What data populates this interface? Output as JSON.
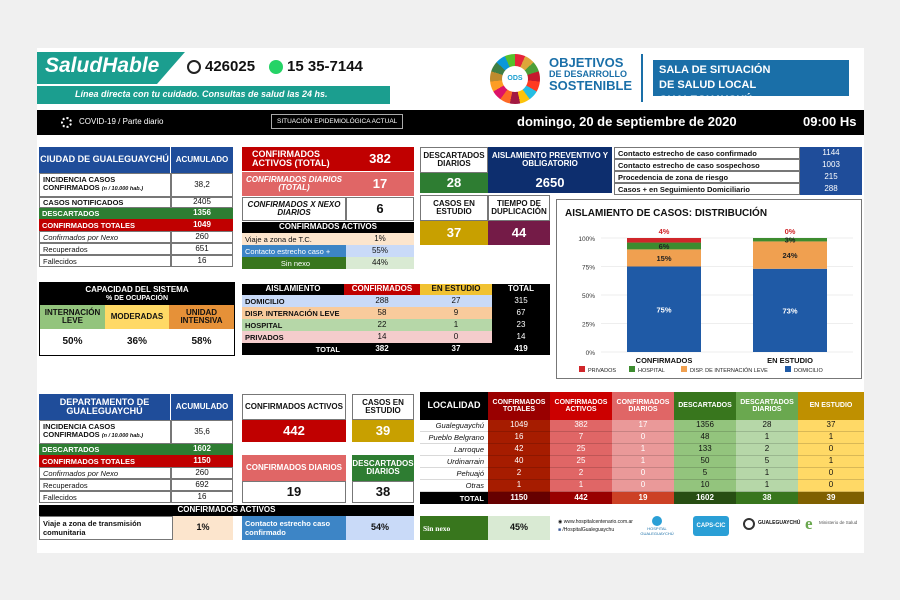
{
  "header": {
    "brand": "SaludHable",
    "phone1": "426025",
    "phone2": "15 35-7144",
    "tagline": "Línea directa con tu cuidado. Consultas de salud las 24 hs.",
    "ods_badge": "ODS",
    "ods_line1": "OBJETIVOS",
    "ods_line2": "DE DESARROLLO",
    "ods_line3": "SOSTENIBLE",
    "sala_line1": "SALA DE SITUACIÓN",
    "sala_line2": "DE SALUD LOCAL GUALEGUAYCHÚ"
  },
  "bar": {
    "covid": "COVID-19 / Parte diario",
    "situacion": "SITUACIÓN EPIDEMIOLÓGICA ACTUAL",
    "date": "domingo, 20 de septiembre de 2020",
    "time": "09:00 Hs"
  },
  "city": {
    "title": "CIUDAD DE GUALEGUAYCHÚ",
    "acum": "ACUMULADO",
    "rows": [
      {
        "label": "INCIDENCIA CASOS CONFIRMADOS",
        "sub": "(n / 10.000 hab.)",
        "value": "38,2"
      },
      {
        "label": "CASOS NOTIFICADOS",
        "value": "2405"
      },
      {
        "label": "DESCARTADOS",
        "value": "1356"
      },
      {
        "label": "CONFIRMADOS TOTALES",
        "value": "1049"
      },
      {
        "label": "Confirmados por Nexo",
        "value": "260"
      },
      {
        "label": "Recuperados",
        "value": "651"
      },
      {
        "label": "Fallecidos",
        "value": "16"
      }
    ]
  },
  "confirm": {
    "activos_label": "CONFIRMADOS ACTIVOS (TOTAL)",
    "activos": "382",
    "diarios_label": "CONFIRMADOS DIARIOS (TOTAL)",
    "diarios": "17",
    "nexo_label": "CONFIRMADOS X NEXO DIARIOS",
    "nexo": "6",
    "ca_title": "CONFIRMADOS ACTIVOS",
    "ca_rows": [
      {
        "label": "Viaje a zona de T.C.",
        "value": "1%"
      },
      {
        "label": "Contacto estrecho caso +",
        "value": "55%"
      },
      {
        "label": "Sin nexo",
        "value": "44%"
      }
    ]
  },
  "desc": {
    "desc_label": "DESCARTADOS DIARIOS",
    "desc": "28",
    "aisl_label": "AISLAMIENTO PREVENTIVO Y OBLIGATORIO",
    "aisl": "2650",
    "estudio_label": "CASOS EN ESTUDIO",
    "estudio": "37",
    "dup_label": "TIEMPO DE DUPLICACIÓN",
    "dup": "44"
  },
  "contacts": [
    {
      "label": "Contacto estrecho de caso confirmado",
      "value": "1144"
    },
    {
      "label": "Contacto estrecho de caso sospechoso",
      "value": "1003"
    },
    {
      "label": "Procedencia de zona de riesgo",
      "value": "215"
    },
    {
      "label": "Casos + en Seguimiento Domiciliario",
      "value": "288"
    }
  ],
  "chart_data": {
    "type": "bar",
    "title": "AISLAMIENTO DE CASOS: DISTRIBUCIÓN",
    "categories": [
      "CONFIRMADOS",
      "EN ESTUDIO"
    ],
    "stacked": true,
    "ylim": [
      0,
      100
    ],
    "yticks": [
      "0%",
      "25%",
      "50%",
      "75%",
      "100%"
    ],
    "series": [
      {
        "name": "DOMICILIO",
        "color": "#1f5aa6",
        "values": [
          75,
          73
        ]
      },
      {
        "name": "DISP. DE INTERNACIÓN LEVE",
        "color": "#f0a050",
        "values": [
          15,
          24
        ]
      },
      {
        "name": "HOSPITAL",
        "color": "#3d8c2f",
        "values": [
          6,
          3
        ]
      },
      {
        "name": "PRIVADOS",
        "color": "#d0262a",
        "values": [
          4,
          0
        ]
      }
    ],
    "value_labels": [
      [
        "75%",
        "15%",
        "6%",
        "4%"
      ],
      [
        "73%",
        "24%",
        "3%",
        "0%"
      ]
    ],
    "legend_order": [
      "PRIVADOS",
      "HOSPITAL",
      "DISP. DE INTERNACIÓN LEVE",
      "DOMICILIO"
    ],
    "legend": "bottom"
  },
  "capacity": {
    "title": "CAPACIDAD DEL SISTEMA",
    "sub": "% DE OCUPACIÓN",
    "cols": [
      {
        "label": "INTERNACIÓN LEVE",
        "value": "50%",
        "bg": "#93c47d"
      },
      {
        "label": "MODERADAS",
        "value": "36%",
        "bg": "#ffd966"
      },
      {
        "label": "UNIDAD INTENSIVA",
        "value": "58%",
        "bg": "#e69138"
      }
    ]
  },
  "aislamiento": {
    "headers": [
      "AISLAMIENTO",
      "CONFIRMADOS",
      "EN ESTUDIO",
      "TOTAL"
    ],
    "rows": [
      {
        "label": "DOMICILIO",
        "conf": "288",
        "est": "27",
        "total": "315",
        "bg": "#c9daf8"
      },
      {
        "label": "DISP. INTERNACIÓN LEVE",
        "conf": "58",
        "est": "9",
        "total": "67",
        "bg": "#f9cb9c"
      },
      {
        "label": "HOSPITAL",
        "conf": "22",
        "est": "1",
        "total": "23",
        "bg": "#b6d7a8"
      },
      {
        "label": "PRIVADOS",
        "conf": "14",
        "est": "0",
        "total": "14",
        "bg": "#f4cccc"
      }
    ],
    "total_label": "TOTAL",
    "total": {
      "conf": "382",
      "est": "37",
      "total": "419"
    }
  },
  "dept": {
    "title": "DEPARTAMENTO DE GUALEGUAYCHÚ",
    "acum": "ACUMULADO",
    "rows": [
      {
        "label": "INCIDENCIA CASOS CONFIRMADOS",
        "sub": "(n / 10.000 hab.)",
        "value": "35,6"
      },
      {
        "label": "DESCARTADOS",
        "value": "1602"
      },
      {
        "label": "CONFIRMADOS TOTALES",
        "value": "1150"
      },
      {
        "label": "Confirmados por Nexo",
        "value": "260"
      },
      {
        "label": "Recuperados",
        "value": "692"
      },
      {
        "label": "Fallecidos",
        "value": "16"
      }
    ]
  },
  "dept_mid": {
    "activos_label": "CONFIRMADOS ACTIVOS",
    "activos": "442",
    "estudio_label": "CASOS EN ESTUDIO",
    "estudio": "39",
    "diarios_label": "CONFIRMADOS DIARIOS",
    "diarios": "19",
    "desc_label": "DESCARTADOS DIARIOS",
    "desc": "38"
  },
  "localidad": {
    "headers": [
      "LOCALIDAD",
      "CONFIRMADOS TOTALES",
      "CONFIRMADOS ACTIVOS",
      "CONFIRMADOS DIARIOS",
      "DESCARTADOS",
      "DESCARTADOS DIARIOS",
      "EN ESTUDIO"
    ],
    "rows": [
      [
        "Gualeguaychú",
        "1049",
        "382",
        "17",
        "1356",
        "28",
        "37"
      ],
      [
        "Pueblo Belgrano",
        "16",
        "7",
        "0",
        "48",
        "1",
        "1"
      ],
      [
        "Larroque",
        "42",
        "25",
        "1",
        "133",
        "2",
        "0"
      ],
      [
        "Urdinarrain",
        "40",
        "25",
        "1",
        "50",
        "5",
        "1"
      ],
      [
        "Pehuajó",
        "2",
        "2",
        "0",
        "5",
        "1",
        "0"
      ],
      [
        "Otras",
        "1",
        "1",
        "0",
        "10",
        "1",
        "0"
      ]
    ],
    "total": [
      "TOTAL",
      "1150",
      "442",
      "19",
      "1602",
      "38",
      "39"
    ]
  },
  "bottom_ca": {
    "title": "CONFIRMADOS ACTIVOS",
    "items": [
      {
        "label": "Viaje a zona de transmisión comunitaria",
        "value": "1%"
      },
      {
        "label": "Contacto estrecho caso confirmado",
        "value": "54%"
      },
      {
        "label": "Sin nexo",
        "value": "45%"
      }
    ]
  },
  "footer": {
    "web": "www.hospitalcentenario.com.ar",
    "fb": "/HospitalGualeguaychu",
    "logos": [
      "HOSPITAL GUALEGUAYCHÚ",
      "CAPS-CIC",
      "GUALEGUAYCHÚ",
      "Ministerio de Salud"
    ]
  }
}
